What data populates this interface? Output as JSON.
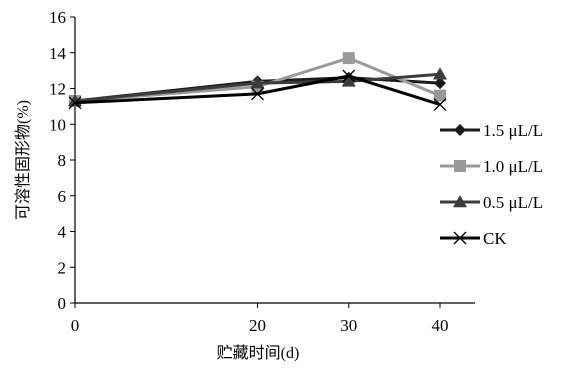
{
  "chart_data": {
    "type": "line",
    "title": "",
    "xlabel": "贮藏时间(d)",
    "ylabel": "可溶性固形物(%)",
    "x": [
      0,
      20,
      30,
      40
    ],
    "x_ticks": [
      0,
      20,
      30,
      40
    ],
    "y_ticks": [
      0,
      2,
      4,
      6,
      8,
      10,
      12,
      14,
      16
    ],
    "ylim": [
      0,
      16
    ],
    "grid": false,
    "legend_position": "right",
    "series": [
      {
        "name": "1.5 μL/L",
        "values": [
          11.3,
          12.4,
          12.6,
          12.3
        ],
        "color": "#1a1a1a",
        "marker": "diamond"
      },
      {
        "name": "1.0 μL/L",
        "values": [
          11.3,
          12.1,
          13.7,
          11.6
        ],
        "color": "#9a9a9a",
        "marker": "square"
      },
      {
        "name": "0.5 μL/L",
        "values": [
          11.3,
          12.3,
          12.4,
          12.8
        ],
        "color": "#3c3c3c",
        "marker": "triangle"
      },
      {
        "name": "CK",
        "values": [
          11.2,
          11.7,
          12.7,
          11.1
        ],
        "color": "#000000",
        "marker": "x"
      }
    ]
  }
}
